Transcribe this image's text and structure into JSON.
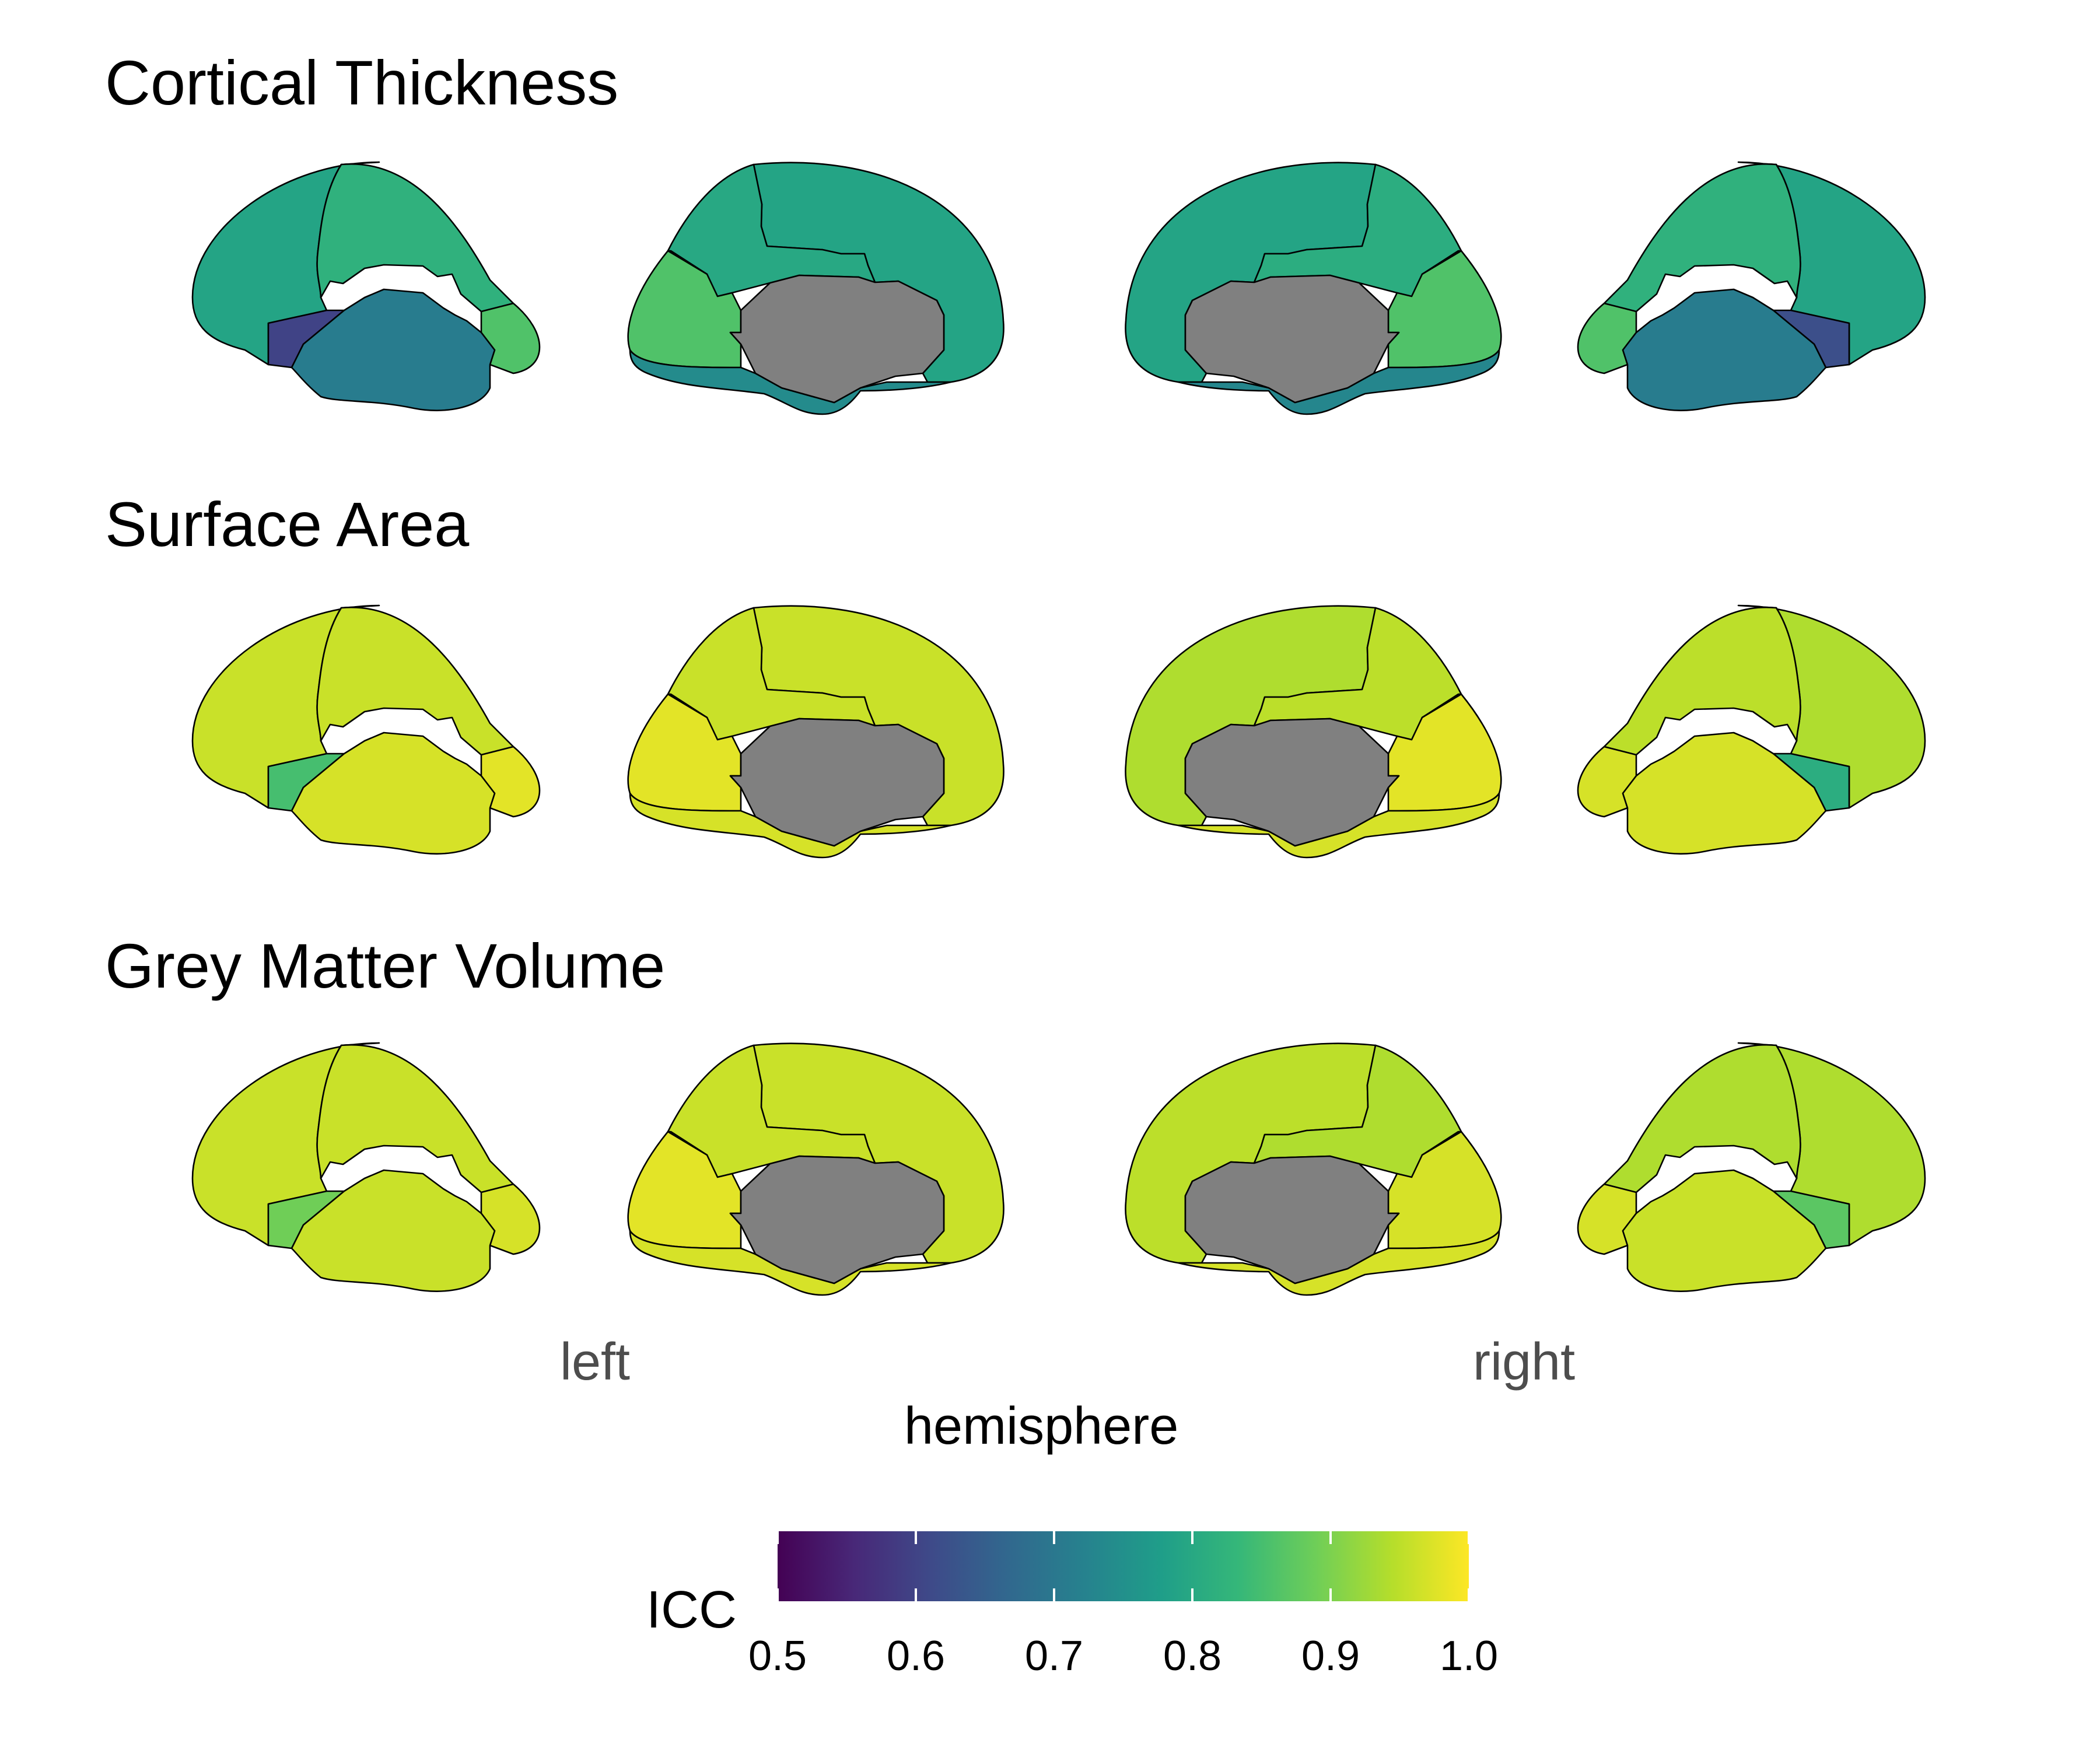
{
  "colors": {
    "medial_wall": "#808080",
    "outline": "#000000",
    "viridis": [
      "#440154",
      "#482878",
      "#3e4a89",
      "#31688e",
      "#26828e",
      "#1f9e89",
      "#35b779",
      "#6ece58",
      "#b5de2b",
      "#fde725"
    ]
  },
  "chart_data": {
    "type": "heatmap",
    "rows": [
      {
        "title": "Cortical Thickness",
        "views": {
          "left_lateral": {
            "frontal": 0.79,
            "parietal": 0.82,
            "occipital": 0.86,
            "insula": 0.6,
            "temporal": 0.71
          },
          "left_medial": {
            "cingulate": 0.8,
            "frontal": 0.79,
            "parietal": 0.8,
            "occipital": 0.86,
            "temporal": 0.74
          },
          "right_medial": {
            "cingulate": 0.8,
            "frontal": 0.79,
            "parietal": 0.81,
            "occipital": 0.86,
            "temporal": 0.73
          },
          "right_lateral": {
            "frontal": 0.79,
            "parietal": 0.82,
            "occipital": 0.86,
            "insula": 0.62,
            "temporal": 0.71
          }
        }
      },
      {
        "title": "Surface Area",
        "views": {
          "left_lateral": {
            "frontal": 0.96,
            "parietal": 0.96,
            "occipital": 0.98,
            "insula": 0.85,
            "temporal": 0.97
          },
          "left_medial": {
            "cingulate": 0.96,
            "frontal": 0.96,
            "parietal": 0.96,
            "occipital": 0.98,
            "temporal": 0.97
          },
          "right_medial": {
            "cingulate": 0.94,
            "frontal": 0.94,
            "parietal": 0.95,
            "occipital": 0.98,
            "temporal": 0.97
          },
          "right_lateral": {
            "frontal": 0.94,
            "parietal": 0.95,
            "occipital": 0.97,
            "insula": 0.81,
            "temporal": 0.97
          }
        }
      },
      {
        "title": "Grey Matter Volume",
        "views": {
          "left_lateral": {
            "frontal": 0.96,
            "parietal": 0.96,
            "occipital": 0.97,
            "insula": 0.89,
            "temporal": 0.96
          },
          "left_medial": {
            "cingulate": 0.96,
            "frontal": 0.96,
            "parietal": 0.96,
            "occipital": 0.98,
            "temporal": 0.97
          },
          "right_medial": {
            "cingulate": 0.95,
            "frontal": 0.95,
            "parietal": 0.94,
            "occipital": 0.97,
            "temporal": 0.97
          },
          "right_lateral": {
            "frontal": 0.94,
            "parietal": 0.94,
            "occipital": 0.97,
            "insula": 0.87,
            "temporal": 0.96
          }
        }
      }
    ],
    "xlabel": "hemisphere",
    "x_categories": [
      "left",
      "right"
    ],
    "legend": {
      "title": "ICC",
      "position": "bottom",
      "range": [
        0.5,
        1.0
      ],
      "ticks": [
        "0.5",
        "0.6",
        "0.7",
        "0.8",
        "0.9",
        "1.0"
      ],
      "palette": "viridis"
    }
  }
}
